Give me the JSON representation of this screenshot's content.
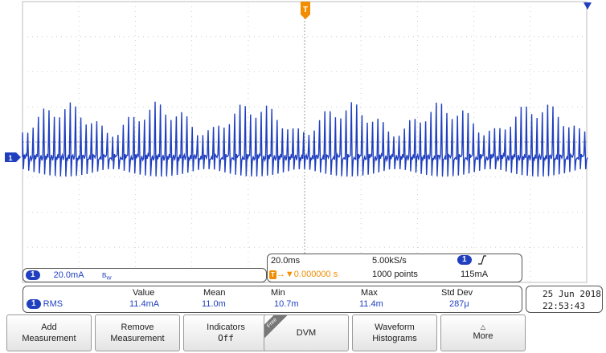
{
  "channel": {
    "number": "1",
    "scale": "20.0mA",
    "bandwidth_icon": "bandwidth-limit-icon",
    "color": "#1f3fbf"
  },
  "horizontal": {
    "time_per_div": "20.0ms",
    "sample_rate": "5.00kS/s",
    "record_length": "1000 points",
    "trigger_offset": "0.000000 s",
    "trigger_channel": "1",
    "trigger_level": "115mA",
    "trigger_slope_icon": "rising-edge-icon",
    "trigger_color": "#f28c00"
  },
  "measurement": {
    "source": "1",
    "name": "RMS",
    "columns": [
      "Value",
      "Mean",
      "Min",
      "Max",
      "Std Dev"
    ],
    "values": [
      "11.4mA",
      "11.0m",
      "10.7m",
      "11.4m",
      "287μ"
    ]
  },
  "datetime": {
    "date": "25 Jun  2018",
    "time": "22:53:43"
  },
  "softkeys": [
    {
      "line1": "Add",
      "line2": "Measurement"
    },
    {
      "line1": "Remove",
      "line2": "Measurement"
    },
    {
      "line1": "Indicators",
      "line2": "Off"
    },
    {
      "line1": "DVM",
      "line2": "",
      "tag": "Free"
    },
    {
      "line1": "Waveform",
      "line2": "Histograms"
    },
    {
      "line1": "More",
      "line2": ""
    }
  ],
  "ground_marker": "1",
  "trigger_marker": "T"
}
